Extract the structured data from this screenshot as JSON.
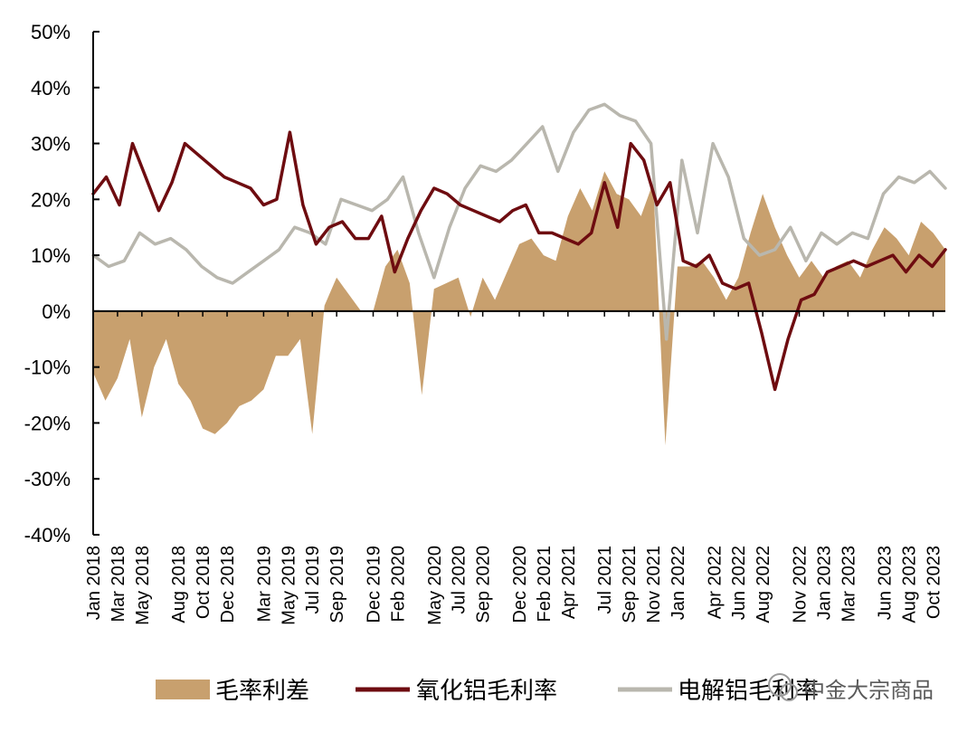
{
  "chart_data": {
    "type": "line",
    "x_kind": "monthly",
    "x_start": "2018-01",
    "x_end": "2023-11",
    "ylim": [
      -40,
      50
    ],
    "yticks": [
      50,
      40,
      30,
      20,
      10,
      0,
      -10,
      -20,
      -30,
      -40
    ],
    "ytick_labels": [
      "50%",
      "40%",
      "30%",
      "20%",
      "10%",
      "0%",
      "-10%",
      "-20%",
      "-30%",
      "-40%"
    ],
    "xtick_labels": [
      "Jan 2018",
      "Mar 2018",
      "May 2018",
      "Aug 2018",
      "Oct 2018",
      "Dec 2018",
      "Mar 2019",
      "May 2019",
      "Jul 2019",
      "Sep 2019",
      "Dec 2019",
      "Feb 2020",
      "May 2020",
      "Jul 2020",
      "Sep 2020",
      "Dec 2020",
      "Feb 2021",
      "Apr 2021",
      "Jul 2021",
      "Sep 2021",
      "Nov 2021",
      "Jan 2022",
      "Apr 2022",
      "Jun 2022",
      "Aug 2022",
      "Nov 2022",
      "Jan 2023",
      "Mar 2023",
      "Jun 2023",
      "Aug 2023",
      "Oct 2023"
    ],
    "series": [
      {
        "name": "毛率利差",
        "kind": "area",
        "color": "#c8a06e",
        "values": [
          -11,
          -16,
          -12,
          -5,
          -19,
          -10,
          -5,
          -13,
          -16,
          -21,
          -22,
          -20,
          -17,
          -16,
          -14,
          -8,
          -8,
          -5,
          -22,
          1,
          6,
          3,
          0,
          0,
          8,
          11,
          5,
          -15,
          4,
          5,
          6,
          -1,
          6,
          2,
          7,
          12,
          13,
          10,
          9,
          17,
          22,
          18,
          25,
          21,
          20,
          17,
          23,
          -24,
          8,
          8,
          9,
          6,
          2,
          6,
          14,
          21,
          15,
          10,
          6,
          9,
          6,
          8,
          9,
          6,
          11,
          15,
          13,
          10,
          16,
          14,
          11
        ]
      },
      {
        "name": "氧化铝毛利率",
        "kind": "line",
        "color": "#6e0c10",
        "values": [
          21,
          24,
          19,
          30,
          24,
          18,
          23,
          30,
          28,
          26,
          24,
          23,
          22,
          19,
          20,
          32,
          19,
          12,
          15,
          16,
          13,
          13,
          17,
          7,
          13,
          18,
          22,
          21,
          19,
          18,
          17,
          16,
          18,
          19,
          14,
          14,
          13,
          12,
          14,
          23,
          15,
          30,
          27,
          19,
          23,
          9,
          8,
          10,
          5,
          4,
          5,
          -4,
          -14,
          -5,
          2,
          3,
          7,
          8,
          9,
          8,
          9,
          10,
          7,
          10,
          8,
          11
        ]
      },
      {
        "name": "电解铝毛利率",
        "kind": "line",
        "color": "#b9b7ae",
        "values": [
          10,
          8,
          9,
          14,
          12,
          13,
          11,
          8,
          6,
          5,
          7,
          9,
          11,
          15,
          14,
          12,
          20,
          19,
          18,
          20,
          24,
          14,
          6,
          15,
          22,
          26,
          25,
          27,
          30,
          33,
          25,
          32,
          36,
          37,
          35,
          34,
          30,
          -5,
          27,
          14,
          30,
          24,
          13,
          10,
          11,
          15,
          9,
          14,
          12,
          14,
          13,
          21,
          24,
          23,
          25,
          22
        ]
      }
    ],
    "legend_placement": "bottom",
    "grid": false
  },
  "legend": {
    "spread_label": "毛率利差",
    "alumina_label": "氧化铝毛利率",
    "electrolytic_label": "电解铝毛利率"
  },
  "watermark": {
    "text": "中金大宗商品"
  }
}
